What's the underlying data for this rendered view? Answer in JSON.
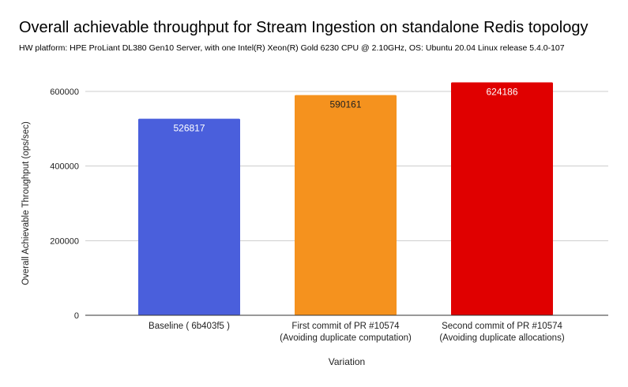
{
  "chart_data": {
    "type": "bar",
    "title": "Overall achievable throughput for Stream Ingestion on standalone Redis topology",
    "subtitle": "HW platform: HPE ProLiant DL380 Gen10 Server, with one Intel(R) Xeon(R) Gold 6230 CPU @ 2.10GHz, OS: Ubuntu 20.04 Linux release 5.4.0-107",
    "xlabel": "Variation",
    "ylabel": "Overall Achievable Throughput (ops/sec)",
    "ylim": [
      0,
      600000
    ],
    "yticks": [
      0,
      200000,
      400000,
      600000
    ],
    "ytick_labels": [
      "0",
      "200000",
      "400000",
      "600000"
    ],
    "grid": true,
    "categories": [
      [
        "Baseline ( 6b403f5 )"
      ],
      [
        "First commit of PR #10574",
        "(Avoiding duplicate computation)"
      ],
      [
        "Second commit of PR #10574",
        "(Avoiding duplicate allocations)"
      ]
    ],
    "values": [
      526817,
      590161,
      624186
    ],
    "data_labels": [
      "526817",
      "590161",
      "624186"
    ],
    "colors": [
      "#4a5fdc",
      "#f5921e",
      "#e00000"
    ],
    "label_colors": [
      "#ffffff",
      "#222222",
      "#ffffff"
    ]
  }
}
